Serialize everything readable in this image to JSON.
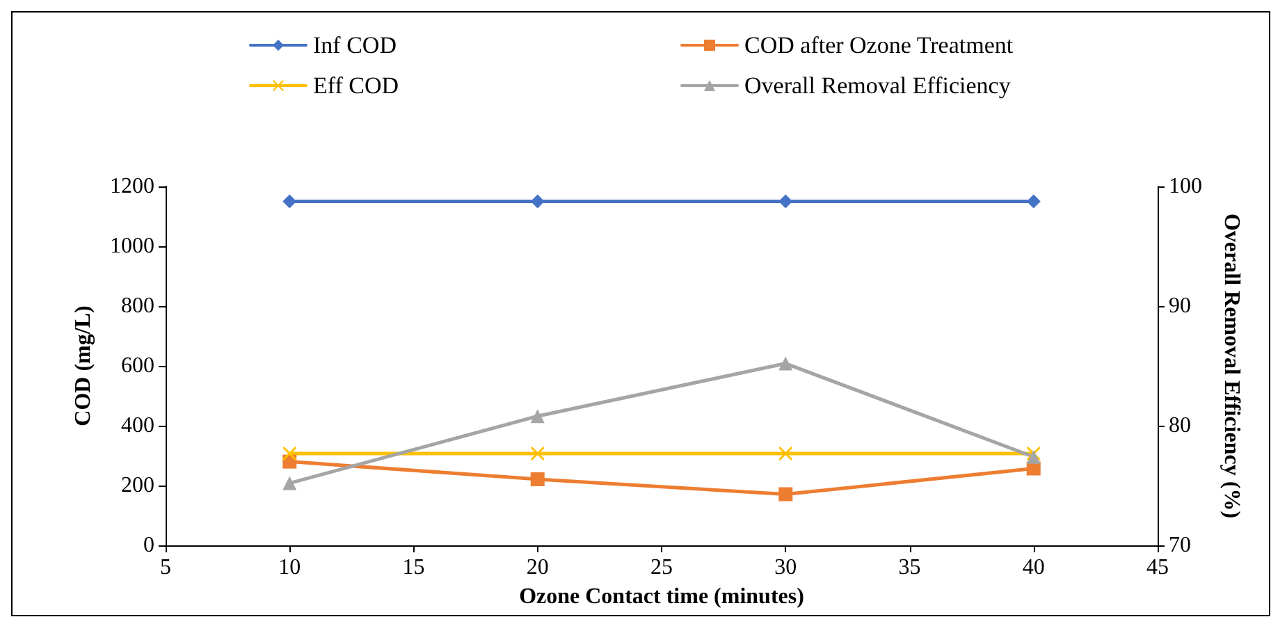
{
  "chart_data": {
    "type": "line",
    "xlabel": "Ozone Contact time (minutes)",
    "ylabel": "COD (mg/L)",
    "y2label": "Overall Removal Efficiency (%)",
    "x": [
      10,
      20,
      30,
      40
    ],
    "xlim": [
      5,
      45
    ],
    "xticks": [
      5,
      10,
      15,
      20,
      25,
      30,
      35,
      40,
      45
    ],
    "ylim": [
      0,
      1200
    ],
    "yticks": [
      0,
      200,
      400,
      600,
      800,
      1000,
      1200
    ],
    "y2lim": [
      70,
      100
    ],
    "y2ticks": [
      70,
      80,
      90,
      100
    ],
    "grid": false,
    "legend": "top",
    "line_style": "solid",
    "series": [
      {
        "name": "Inf COD",
        "color": "#4472c4",
        "marker": "diamond",
        "values": [
          1150,
          1150,
          1150,
          1150
        ]
      },
      {
        "name": "COD after Ozone Treatment",
        "color": "#ed7d31",
        "marker": "square",
        "values": [
          280,
          221,
          171,
          257
        ]
      },
      {
        "name": "Eff COD",
        "color": "#ffc000",
        "marker": "cross",
        "values": [
          307,
          307,
          307,
          307
        ]
      },
      {
        "name": "Overall Removal Efficiency",
        "color": "#a5a5a5",
        "marker": "triangle",
        "axis": "y2",
        "values": [
          75.2,
          80.8,
          85.2,
          77.4
        ]
      }
    ]
  }
}
